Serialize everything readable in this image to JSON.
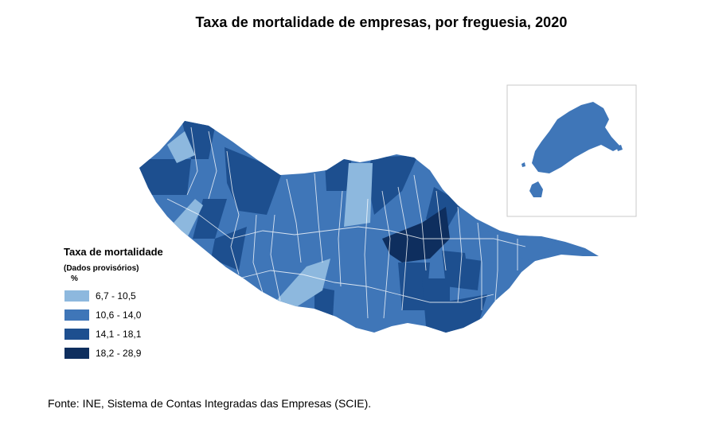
{
  "title": "Taxa de mortalidade de empresas, por freguesia, 2020",
  "legend": {
    "title": "Taxa de mortalidade",
    "subtitle": "(Dados provisórios)",
    "unit": "%",
    "classes": [
      {
        "label": "6,7 - 10,5",
        "color": "#8db8de"
      },
      {
        "label": "10,6 - 14,0",
        "color": "#3f76b8"
      },
      {
        "label": "14,1 - 18,1",
        "color": "#1d4f8f"
      },
      {
        "label": "18,2 - 28,9",
        "color": "#0e2e5e"
      }
    ]
  },
  "source": "Fonte: INE, Sistema de Contas Integradas das Empresas (SCIE).",
  "map": {
    "regions": [
      "Madeira",
      "Porto Santo (inset)"
    ]
  }
}
